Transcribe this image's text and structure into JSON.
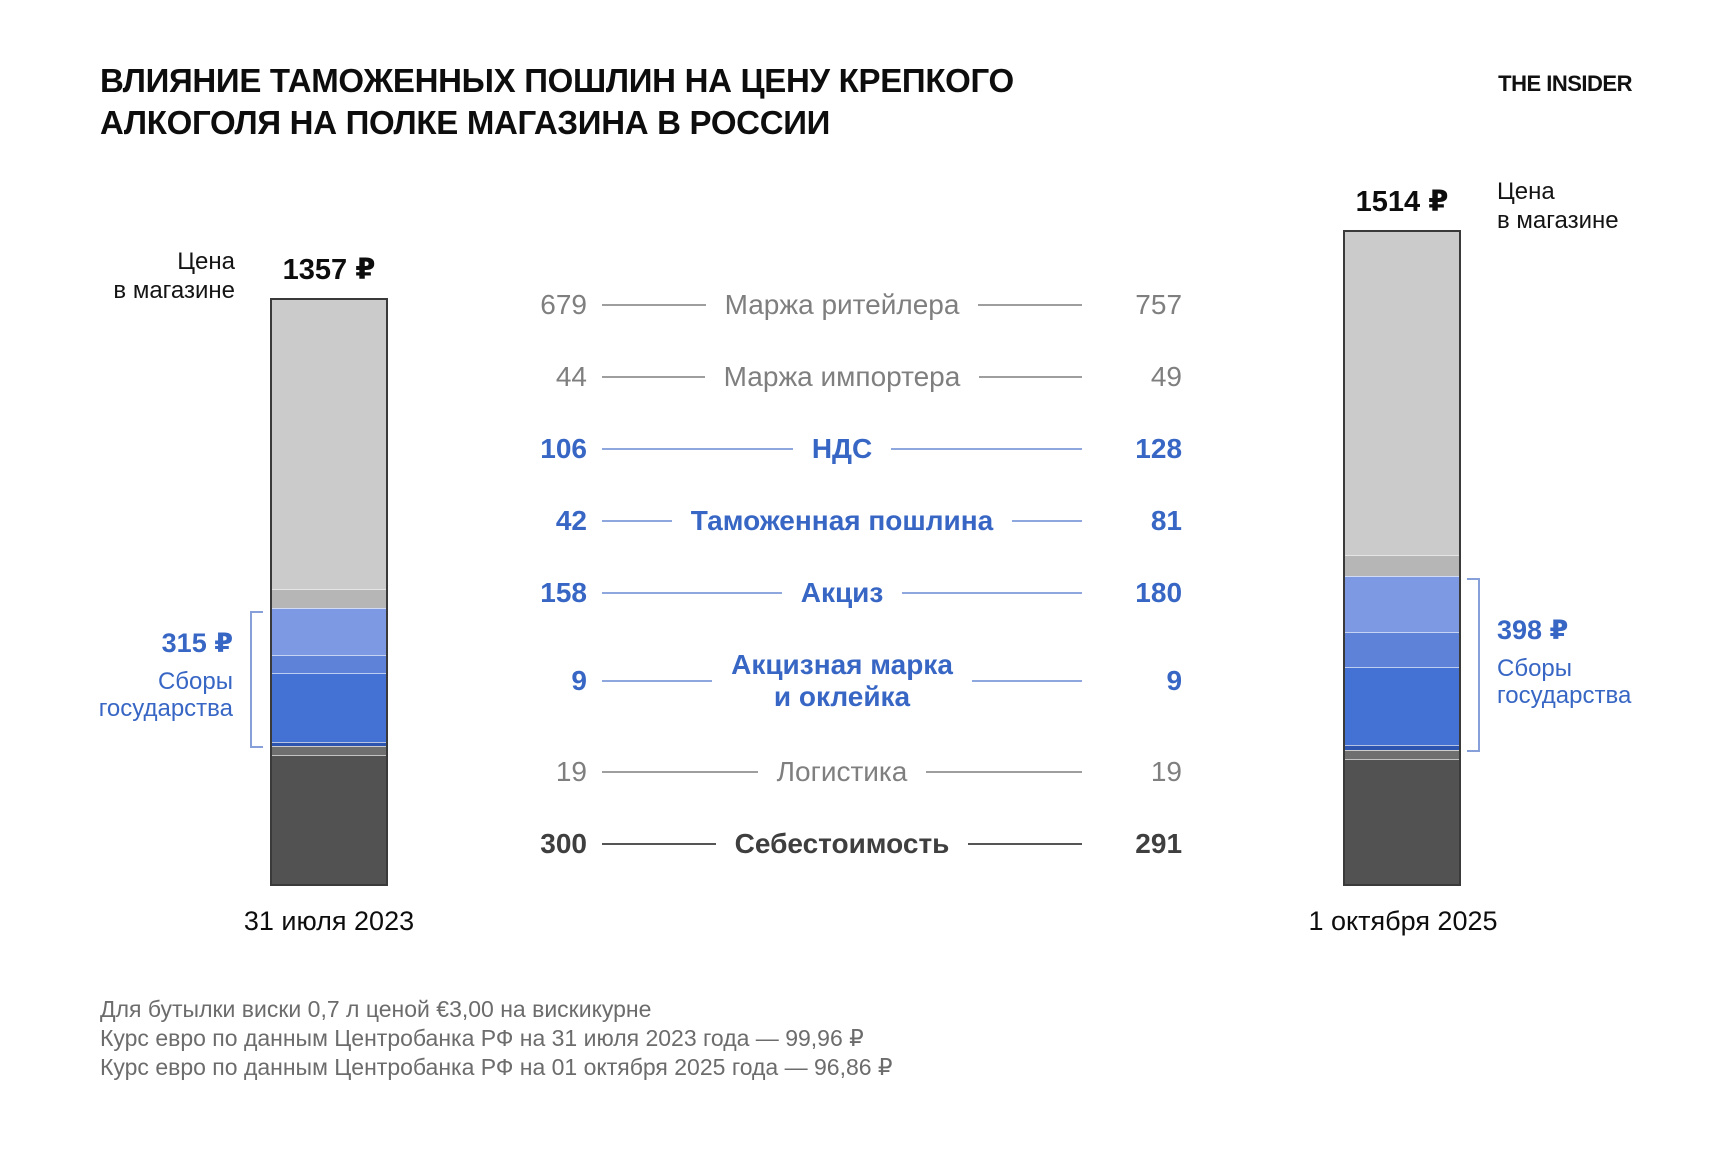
{
  "title": "ВЛИЯНИЕ ТАМОЖЕННЫХ ПОШЛИН НА ЦЕНУ КРЕПКОГО\nАЛКОГОЛЯ НА ПОЛКЕ МАГАЗИНА В РОССИИ",
  "logo": "THE INSIDER",
  "chart_data": {
    "type": "bar",
    "variant": "stacked-column-comparison",
    "currency": "₽",
    "grid": false,
    "legend_position": "center-between-bars",
    "categories": [
      "Маржа ритейлера",
      "Маржа импортера",
      "НДС",
      "Таможенная пошлина",
      "Акциз",
      "Акцизная марка и оклейка",
      "Логистика",
      "Себестоимость"
    ],
    "category_colors": [
      "#cbcbcb",
      "#b6b6b6",
      "#7d99e3",
      "#5f82d9",
      "#4472d4",
      "#2d55b0",
      "#6f6f6f",
      "#525252"
    ],
    "legend_rows": [
      {
        "label": "Маржа ритейлера",
        "value_2023": "679",
        "value_2025": "757",
        "style": "gray"
      },
      {
        "label": "Маржа импортера",
        "value_2023": "44",
        "value_2025": "49",
        "style": "gray"
      },
      {
        "label": "НДС",
        "value_2023": "106",
        "value_2025": "128",
        "style": "blue"
      },
      {
        "label": "Таможенная пошлина",
        "value_2023": "42",
        "value_2025": "81",
        "style": "blue"
      },
      {
        "label": "Акциз",
        "value_2023": "158",
        "value_2025": "180",
        "style": "blue"
      },
      {
        "label": "Акцизная марка\nи оклейка",
        "value_2023": "9",
        "value_2025": "9",
        "style": "blue"
      },
      {
        "label": "Логистика",
        "value_2023": "19",
        "value_2025": "19",
        "style": "gray"
      },
      {
        "label": "Себестоимость",
        "value_2023": "300",
        "value_2025": "291",
        "style": "dark"
      }
    ],
    "bars": [
      {
        "date": "31 июля 2023",
        "shelf_price_label": "Цена\nв магазине",
        "total": 1357,
        "total_label": "1357 ₽",
        "values": [
          679,
          44,
          106,
          42,
          158,
          9,
          19,
          300
        ],
        "state_fees": {
          "sum": 315,
          "sum_label": "315 ₽",
          "caption": "Сборы\nгосударства",
          "includes": [
            "НДС",
            "Таможенная пошлина",
            "Акциз",
            "Акцизная марка и оклейка"
          ]
        }
      },
      {
        "date": "1 октября 2025",
        "shelf_price_label": "Цена\nв магазине",
        "total": 1514,
        "total_label": "1514 ₽",
        "values": [
          757,
          49,
          128,
          81,
          180,
          9,
          19,
          291
        ],
        "state_fees": {
          "sum": 398,
          "sum_label": "398 ₽",
          "caption": "Сборы\nгосударства",
          "includes": [
            "НДС",
            "Таможенная пошлина",
            "Акциз",
            "Акцизная марка и оклейка"
          ]
        }
      }
    ]
  },
  "footnotes": [
    "Для бутылки виски 0,7 л ценой €3,00 на вискикурне",
    "Курс евро по данным Центробанка РФ на 31 июля 2023 года — 99,96 ₽",
    "Курс евро по данным Центробанка РФ на 01 октября 2025 года — 96,86 ₽"
  ],
  "colors": {
    "state_fees_text": "#3766c4",
    "legend_gray_text": "#7f7f7f",
    "legend_dark_text": "#3f3f3f",
    "bracket": "#87a0da"
  }
}
